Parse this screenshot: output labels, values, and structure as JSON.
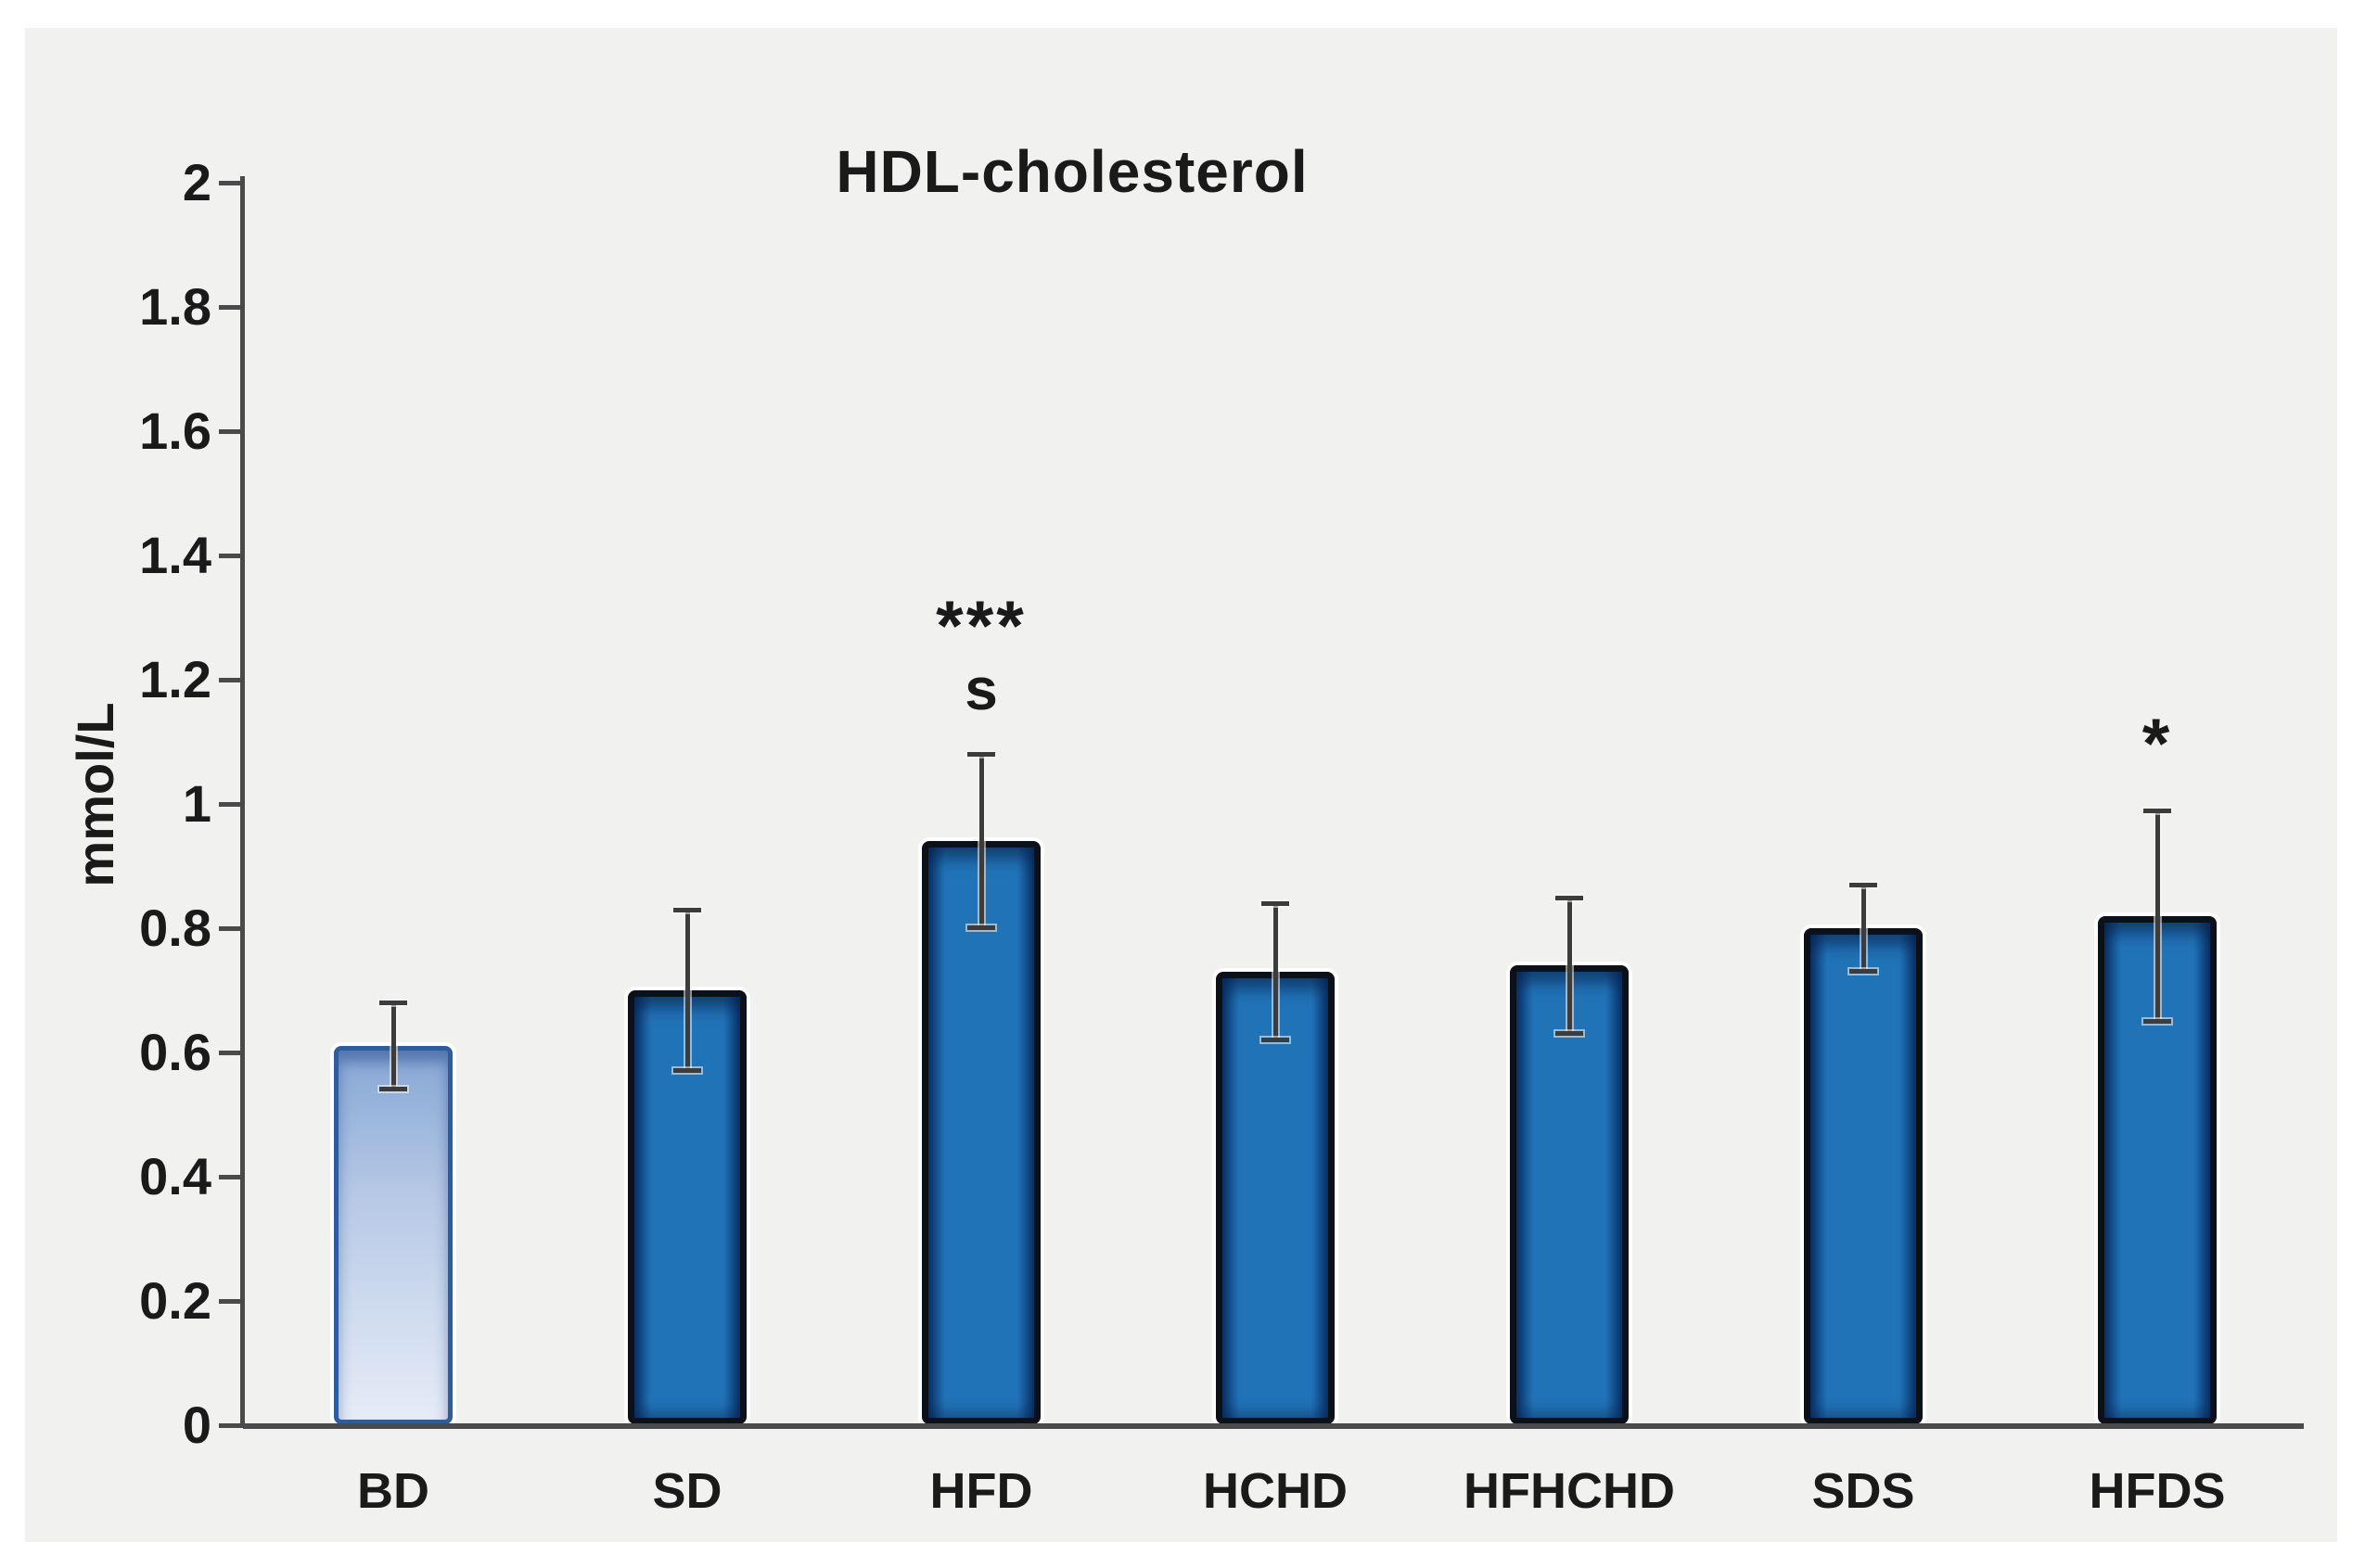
{
  "chart_data": {
    "type": "bar",
    "title": "HDL-cholesterol",
    "ylabel": "mmol/L",
    "ylim": [
      0,
      2
    ],
    "ytick_step": 0.2,
    "ytick_labels": [
      "2",
      "1.8",
      "1.6",
      "1.4",
      "1.2",
      "1",
      "0.8",
      "0.6",
      "0.4",
      "0.2",
      "0"
    ],
    "grid": false,
    "categories": [
      "BD",
      "SD",
      "HFD",
      "HCHD",
      "HFHCHD",
      "SDS",
      "HFDS"
    ],
    "values": [
      0.61,
      0.7,
      0.94,
      0.73,
      0.74,
      0.8,
      0.82
    ],
    "error_plus": [
      0.07,
      0.13,
      0.14,
      0.11,
      0.11,
      0.07,
      0.17
    ],
    "error_minus": [
      0.07,
      0.13,
      0.14,
      0.11,
      0.11,
      0.07,
      0.17
    ],
    "significance": [
      [],
      [],
      [
        "***",
        "s"
      ],
      [],
      [],
      [],
      [
        "*"
      ]
    ],
    "bar_styles": [
      "light-gradient",
      "solid",
      "solid",
      "solid",
      "solid",
      "solid",
      "solid"
    ],
    "colors": {
      "page_bg": "#ffffff",
      "panel_bg": "#f1f1ef",
      "text": "#1a1a1a",
      "axis": "#4a4a4a",
      "bar_fill": "#2173b8",
      "bar_edge_dark": "#0d3f79",
      "bar_border": "#0c1018",
      "bd_gradient_top": "#86a7d4",
      "bd_gradient_bottom": "#e6ecf7",
      "bd_border": "#2e5d9f"
    }
  }
}
